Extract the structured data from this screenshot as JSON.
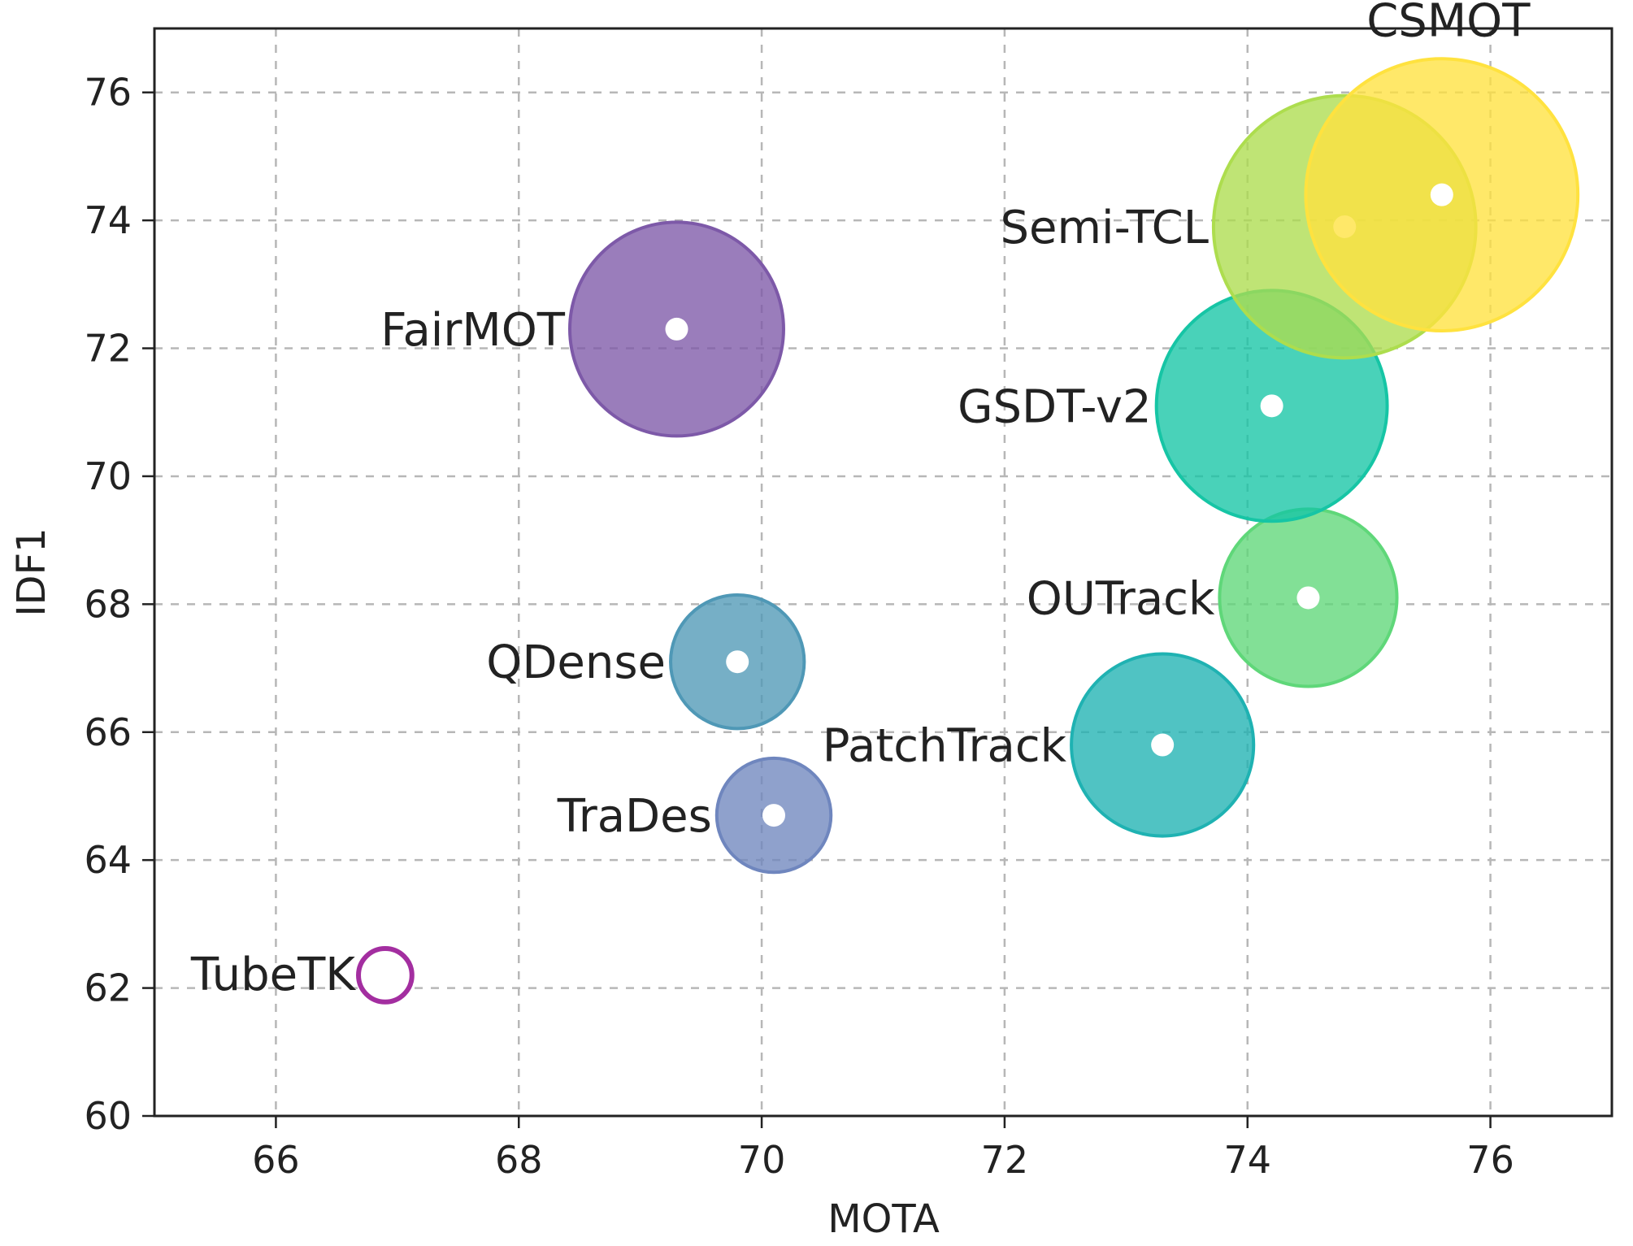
{
  "chart_data": {
    "type": "scatter",
    "subtype": "bubble",
    "title": "",
    "xlabel": "MOTA",
    "ylabel": "IDF1",
    "xlim": [
      65,
      77
    ],
    "ylim": [
      60,
      77
    ],
    "xticks": [
      66,
      68,
      70,
      72,
      74,
      76
    ],
    "yticks": [
      60,
      62,
      64,
      66,
      68,
      70,
      72,
      74,
      76
    ],
    "grid": true,
    "points": [
      {
        "name": "TubeTK",
        "x": 66.9,
        "y": 62.2,
        "size": 0.22,
        "color": "#a32ea0"
      },
      {
        "name": "TraDes",
        "x": 70.1,
        "y": 64.7,
        "size": 0.47,
        "color": "#6f86be"
      },
      {
        "name": "QDense",
        "x": 69.8,
        "y": 67.1,
        "size": 0.55,
        "color": "#4f98b6"
      },
      {
        "name": "FairMOT",
        "x": 69.3,
        "y": 72.3,
        "size": 0.88,
        "color": "#7d59a8"
      },
      {
        "name": "PatchTrack",
        "x": 73.3,
        "y": 65.8,
        "size": 0.75,
        "color": "#1fb2b2"
      },
      {
        "name": "OUTrack",
        "x": 74.5,
        "y": 68.1,
        "size": 0.73,
        "color": "#5fd779"
      },
      {
        "name": "GSDT-v2",
        "x": 74.2,
        "y": 71.1,
        "size": 0.95,
        "color": "#16c5a5"
      },
      {
        "name": "Semi-TCL",
        "x": 74.8,
        "y": 73.9,
        "size": 1.08,
        "color": "#addd4e"
      },
      {
        "name": "CSMOT",
        "x": 75.6,
        "y": 74.4,
        "size": 1.12,
        "color": "#ffe23f"
      }
    ]
  }
}
